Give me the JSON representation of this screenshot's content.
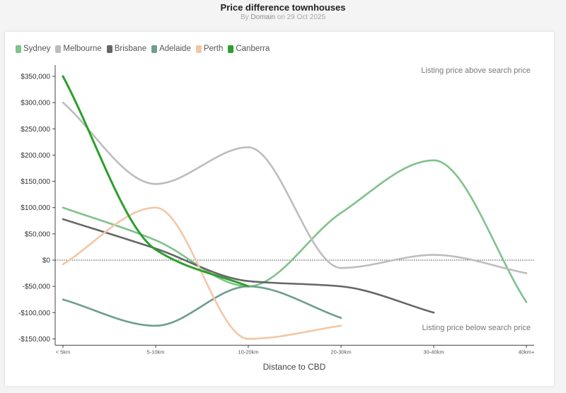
{
  "header": {
    "title": "Price difference townhouses",
    "subtitle_prefix": "By ",
    "author": "Domain",
    "subtitle_suffix": " on 29 Oct 2025"
  },
  "legend": [
    {
      "name": "Sydney",
      "color": "#7fc28c"
    },
    {
      "name": "Melbourne",
      "color": "#bdbdbd"
    },
    {
      "name": "Brisbane",
      "color": "#666666"
    },
    {
      "name": "Adelaide",
      "color": "#6f9e8c"
    },
    {
      "name": "Perth",
      "color": "#f2c7a6"
    },
    {
      "name": "Canberra",
      "color": "#2ba02b"
    }
  ],
  "annotations": {
    "above": "Listing price above search price",
    "below": "Listing price below search price"
  },
  "chart_data": {
    "type": "line",
    "title": "Price difference townhouses",
    "subtitle": "By Domain on 29 Oct 2025",
    "xlabel": "Distance to CBD",
    "ylabel": "",
    "categories": [
      "< 5km",
      "5-10km",
      "10-20km",
      "20-30km",
      "30-40km",
      "40km+"
    ],
    "yticks": [
      350000,
      300000,
      250000,
      200000,
      150000,
      100000,
      50000,
      0,
      -50000,
      -100000,
      -150000
    ],
    "ytick_labels": [
      "$350,000",
      "$300,000",
      "$250,000",
      "$200,000",
      "$150,000",
      "$100,000",
      "$50,000",
      "$0",
      "-$50,000",
      "-$100,000",
      "-$150,000"
    ],
    "ylim": [
      -150000,
      350000
    ],
    "grid": false,
    "legend_position": "top-left",
    "zero_line": "dotted",
    "series": [
      {
        "name": "Sydney",
        "color": "#7fc28c",
        "values": [
          100000,
          38000,
          -50000,
          90000,
          190000,
          -80000
        ]
      },
      {
        "name": "Melbourne",
        "color": "#bdbdbd",
        "values": [
          300000,
          145000,
          215000,
          -15000,
          10000,
          -25000
        ]
      },
      {
        "name": "Brisbane",
        "color": "#666666",
        "values": [
          78000,
          22000,
          -40000,
          -50000,
          -100000,
          null
        ]
      },
      {
        "name": "Adelaide",
        "color": "#6f9e8c",
        "values": [
          -75000,
          -125000,
          -50000,
          -110000,
          null,
          null
        ]
      },
      {
        "name": "Perth",
        "color": "#f2c7a6",
        "values": [
          -8000,
          100000,
          -150000,
          -125000,
          null,
          null
        ]
      },
      {
        "name": "Canberra",
        "color": "#2ba02b",
        "values": [
          350000,
          20000,
          -50000,
          null,
          null,
          null
        ]
      }
    ],
    "annotations": [
      {
        "text": "Listing price above search price",
        "position": "top-right"
      },
      {
        "text": "Listing price below search price",
        "position": "bottom-right"
      }
    ]
  }
}
